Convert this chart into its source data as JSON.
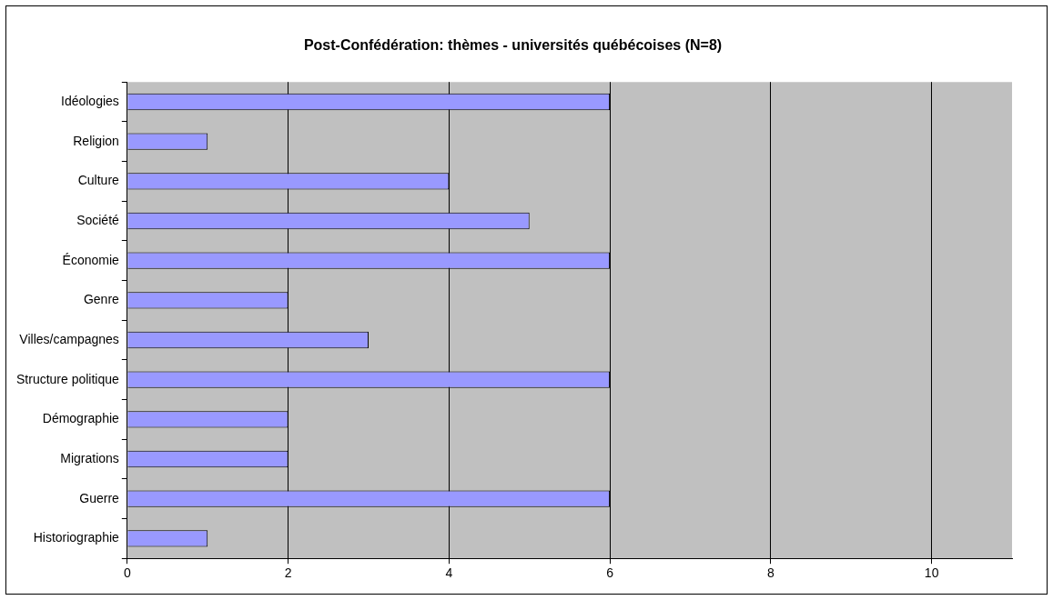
{
  "chart_data": {
    "type": "bar",
    "orientation": "horizontal",
    "title": "Post-Confédération: thèmes - universités québécoises (N=8)",
    "categories": [
      "Idéologies",
      "Religion",
      "Culture",
      "Société",
      "Économie",
      "Genre",
      "Villes/campagnes",
      "Structure politique",
      "Démographie",
      "Migrations",
      "Guerre",
      "Historiographie"
    ],
    "values": [
      6,
      1,
      4,
      5,
      6,
      2,
      3,
      6,
      2,
      2,
      6,
      1
    ],
    "color": "#9999ff",
    "xlim": [
      0,
      11
    ],
    "xticks": [
      0,
      2,
      4,
      6,
      8,
      10
    ],
    "grid": "x",
    "legend": false
  }
}
